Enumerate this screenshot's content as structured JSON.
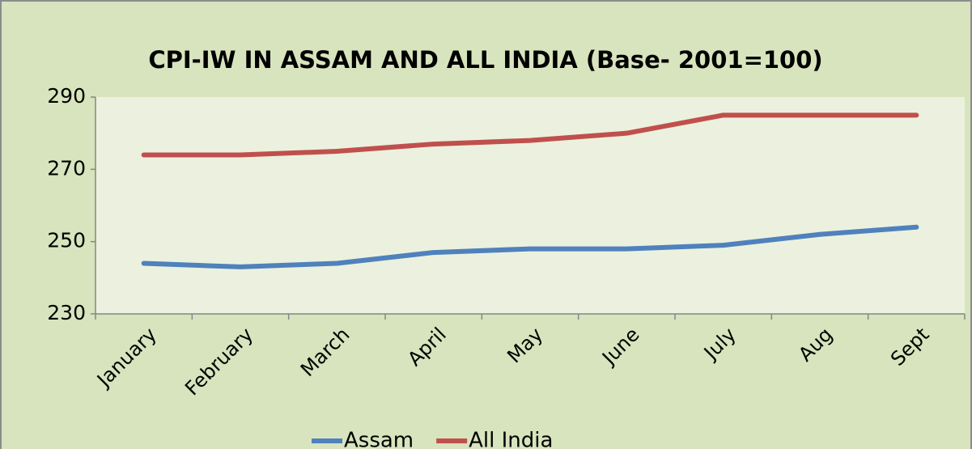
{
  "chart_data": {
    "type": "line",
    "title": "CPI-IW IN ASSAM AND ALL INDIA (Base- 2001=100)",
    "categories": [
      "January",
      "February",
      "March",
      "April",
      "May",
      "June",
      "July",
      "Aug",
      "Sept"
    ],
    "series": [
      {
        "name": "Assam",
        "color": "#4f81bd",
        "values": [
          244,
          243,
          244,
          247,
          248,
          248,
          249,
          252,
          254
        ]
      },
      {
        "name": "All India",
        "color": "#c0504d",
        "values": [
          274,
          274,
          275,
          277,
          278,
          280,
          285,
          285,
          285
        ]
      }
    ],
    "ylim": [
      230,
      290
    ],
    "yticks": [
      230,
      250,
      270,
      290
    ],
    "grid": false,
    "legend": "bottom"
  }
}
